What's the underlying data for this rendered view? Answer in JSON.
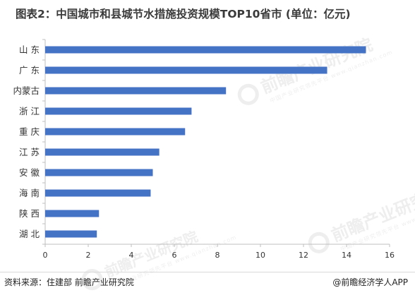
{
  "title": "图表2：中国城市和县城节水措施投资规模TOP10省市 (单位：亿元)",
  "source": "资料来源：住建部 前瞻产业研究院",
  "brand": "@前瞻经济学人APP",
  "watermark": {
    "text": "前瞻产业研究院",
    "sub": "中国产业研究领先平台 www.qianzhan.com"
  },
  "colors": {
    "bar": "#4472c4",
    "axis": "#bfbfbf",
    "text": "#333333"
  },
  "chart_data": {
    "type": "bar",
    "orientation": "horizontal",
    "categories": [
      "山  东",
      "广  东",
      "内蒙古",
      "浙  江",
      "重  庆",
      "江  苏",
      "安  徽",
      "海  南",
      "陕  西",
      "湖  北"
    ],
    "values": [
      14.9,
      13.1,
      8.4,
      6.8,
      6.5,
      5.3,
      5.0,
      4.9,
      2.5,
      2.4
    ],
    "xlim": [
      0,
      16
    ],
    "xticks": [
      0,
      2,
      4,
      6,
      8,
      10,
      12,
      14,
      16
    ],
    "xlabel": "",
    "ylabel": "",
    "grid": false
  }
}
